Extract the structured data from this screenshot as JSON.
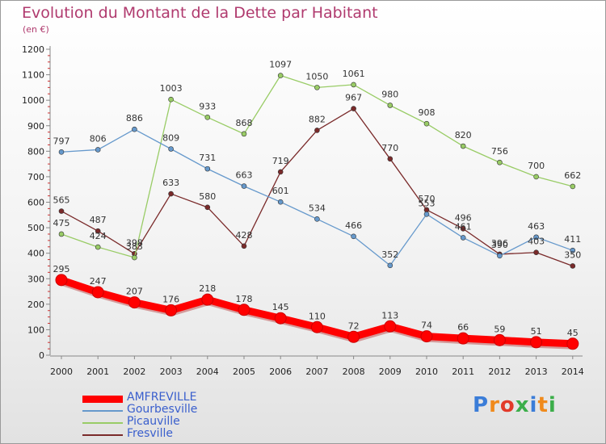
{
  "title": "Evolution du Montant de la Dette par Habitant",
  "subtitle": "(en €)",
  "logo": "Proxiti",
  "chart_data": {
    "type": "line",
    "x": [
      "2000",
      "2001",
      "2002",
      "2003",
      "2004",
      "2005",
      "2006",
      "2007",
      "2008",
      "2009",
      "2010",
      "2011",
      "2012",
      "2013",
      "2014"
    ],
    "ylim": [
      0,
      1200
    ],
    "yticks": [
      0,
      100,
      200,
      300,
      400,
      500,
      600,
      700,
      800,
      900,
      1000,
      1100,
      1200
    ],
    "grid": false,
    "legend_position": "bottom-left",
    "series": [
      {
        "name": "AMFREVILLE",
        "color": "#ff0000",
        "values": [
          295,
          247,
          207,
          176,
          218,
          178,
          145,
          110,
          72,
          113,
          74,
          66,
          59,
          51,
          45
        ]
      },
      {
        "name": "Gourbesville",
        "color": "#6699cc",
        "values": [
          797,
          806,
          886,
          809,
          731,
          663,
          601,
          534,
          466,
          352,
          553,
          461,
          390,
          463,
          411
        ]
      },
      {
        "name": "Picauville",
        "color": "#99cc66",
        "values": [
          475,
          424,
          383,
          1003,
          933,
          868,
          1097,
          1050,
          1061,
          980,
          908,
          820,
          756,
          700,
          662
        ]
      },
      {
        "name": "Fresville",
        "color": "#7a2a2a",
        "values": [
          565,
          487,
          398,
          633,
          580,
          428,
          719,
          882,
          967,
          770,
          570,
          496,
          396,
          403,
          350
        ]
      }
    ]
  }
}
